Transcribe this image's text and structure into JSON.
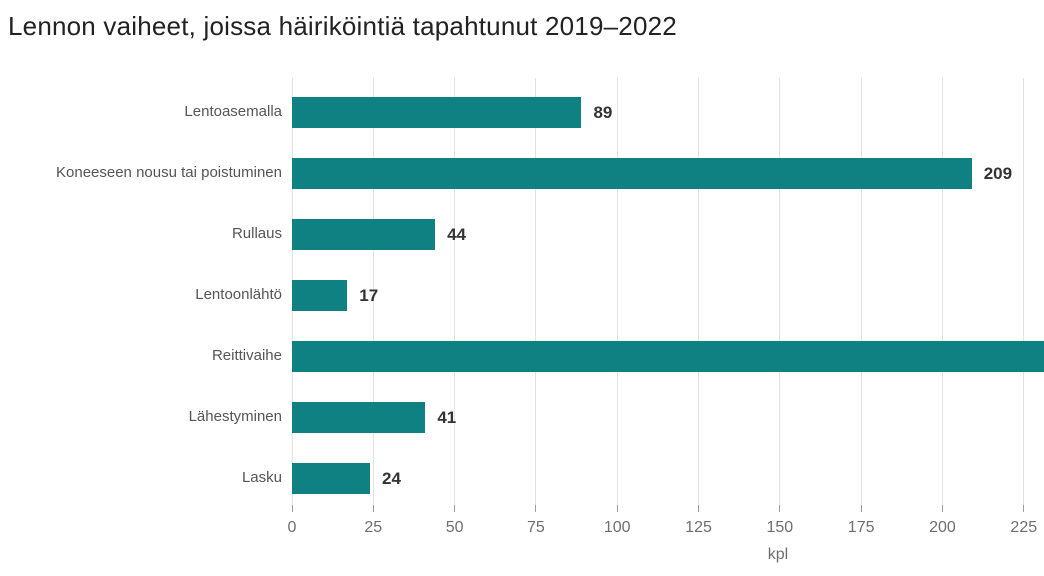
{
  "chart_data": {
    "type": "bar",
    "orientation": "horizontal",
    "title": "Lennon vaiheet, joissa häiriköintiä tapahtunut 2019–2022",
    "categories": [
      "Lentoasemalla",
      "Koneeseen nousu tai poistuminen",
      "Rullaus",
      "Lentoonlähtö",
      "Reittivaihe",
      "Lähestyminen",
      "Lasku"
    ],
    "values": [
      89,
      209,
      44,
      17,
      null,
      41,
      24
    ],
    "value_labels": [
      "89",
      "209",
      "44",
      "17",
      "",
      "41",
      "24"
    ],
    "clipped_note": "Reittivaihe bar extends past the right edge of the image; its value label is not visible",
    "x_ticks": [
      0,
      25,
      50,
      75,
      100,
      125,
      150,
      175,
      200,
      225
    ],
    "xlim_visible": [
      0,
      225
    ],
    "xlabel": "kpl",
    "grid": true,
    "legend": "none",
    "colors": {
      "bar": "#0f8182",
      "title_text": "#222222",
      "category_text": "#555555",
      "tick_text": "#6e6e6e",
      "value_text": "#333333",
      "gridline": "#e2e2e2",
      "tick_mark": "#9a9a9a",
      "background": "#ffffff"
    }
  }
}
